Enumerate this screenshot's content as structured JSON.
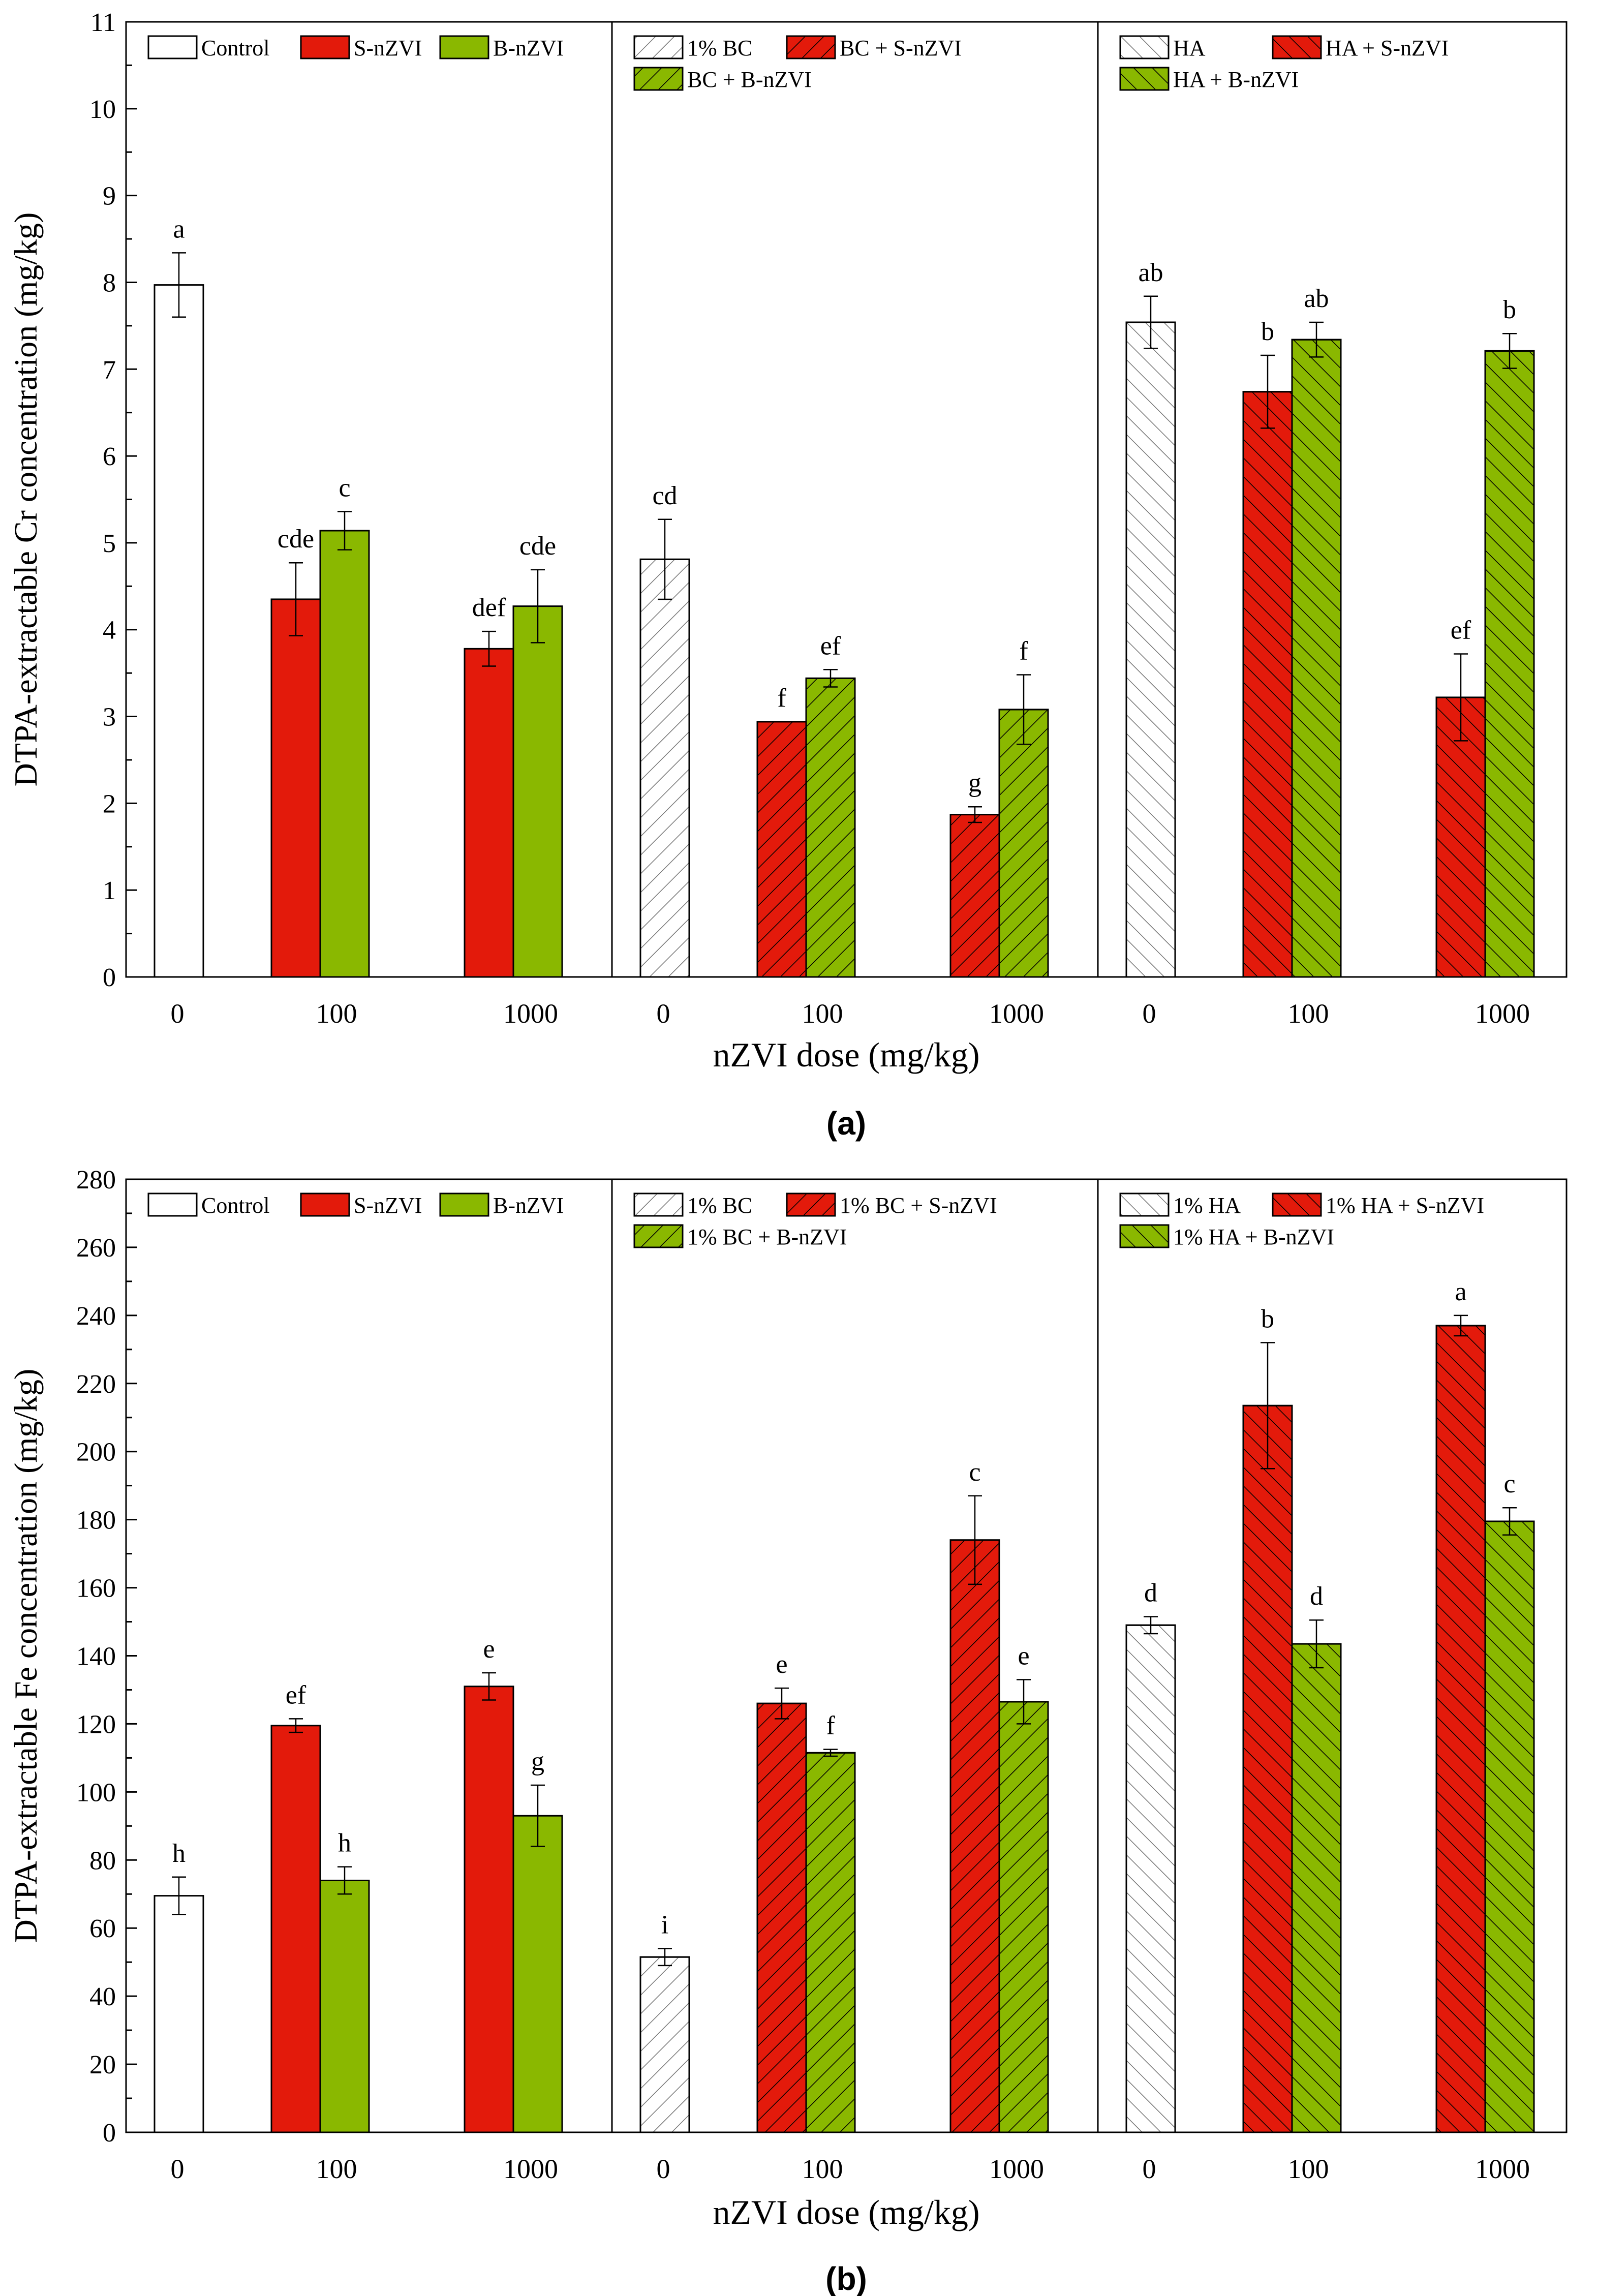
{
  "chart_data": [
    {
      "panel_label": "(a)",
      "type": "bar",
      "ylabel": "DTPA-extractable Cr concentration (mg/kg)",
      "xlabel": "nZVI dose (mg/kg)",
      "ylim": [
        0,
        11
      ],
      "yticks": [
        0,
        1,
        2,
        3,
        4,
        5,
        6,
        7,
        8,
        9,
        10,
        11
      ],
      "x_tick_labels": [
        "0",
        "100",
        "1000",
        "0",
        "100",
        "1000",
        "0",
        "100",
        "1000"
      ],
      "groups": [
        {
          "legend": [
            {
              "label": "Control",
              "color": "#ffffff",
              "hatch": "none"
            },
            {
              "label": "S-nZVI",
              "color": "#e31a0b",
              "hatch": "none"
            },
            {
              "label": "B-nZVI",
              "color": "#8ab800",
              "hatch": "none"
            }
          ],
          "doses": [
            {
              "dose": "0",
              "bars": [
                {
                  "series": 0,
                  "value": 7.97,
                  "err": 0.37,
                  "sig": "a"
                }
              ]
            },
            {
              "dose": "100",
              "bars": [
                {
                  "series": 1,
                  "value": 4.35,
                  "err": 0.42,
                  "sig": "cde"
                },
                {
                  "series": 2,
                  "value": 5.14,
                  "err": 0.22,
                  "sig": "c"
                }
              ]
            },
            {
              "dose": "1000",
              "bars": [
                {
                  "series": 1,
                  "value": 3.78,
                  "err": 0.2,
                  "sig": "def"
                },
                {
                  "series": 2,
                  "value": 4.27,
                  "err": 0.42,
                  "sig": "cde"
                }
              ]
            }
          ]
        },
        {
          "legend": [
            {
              "label": "1% BC",
              "color": "#ffffff",
              "hatch": "back"
            },
            {
              "label": "BC + S-nZVI",
              "color": "#e31a0b",
              "hatch": "back"
            },
            {
              "label": "BC + B-nZVI",
              "color": "#8ab800",
              "hatch": "back"
            }
          ],
          "doses": [
            {
              "dose": "0",
              "bars": [
                {
                  "series": 0,
                  "value": 4.81,
                  "err": 0.46,
                  "sig": "cd"
                }
              ]
            },
            {
              "dose": "100",
              "bars": [
                {
                  "series": 1,
                  "value": 2.94,
                  "err": 0,
                  "sig": "f"
                },
                {
                  "series": 2,
                  "value": 3.44,
                  "err": 0.1,
                  "sig": "ef"
                }
              ]
            },
            {
              "dose": "1000",
              "bars": [
                {
                  "series": 1,
                  "value": 1.87,
                  "err": 0.09,
                  "sig": "g"
                },
                {
                  "series": 2,
                  "value": 3.08,
                  "err": 0.4,
                  "sig": "f"
                }
              ]
            }
          ]
        },
        {
          "legend": [
            {
              "label": "HA",
              "color": "#ffffff",
              "hatch": "fwd"
            },
            {
              "label": "HA + S-nZVI",
              "color": "#e31a0b",
              "hatch": "fwd"
            },
            {
              "label": "HA + B-nZVI",
              "color": "#8ab800",
              "hatch": "fwd"
            }
          ],
          "doses": [
            {
              "dose": "0",
              "bars": [
                {
                  "series": 0,
                  "value": 7.54,
                  "err": 0.3,
                  "sig": "ab"
                }
              ]
            },
            {
              "dose": "100",
              "bars": [
                {
                  "series": 1,
                  "value": 6.74,
                  "err": 0.42,
                  "sig": "b"
                },
                {
                  "series": 2,
                  "value": 7.34,
                  "err": 0.2,
                  "sig": "ab"
                }
              ]
            },
            {
              "dose": "1000",
              "bars": [
                {
                  "series": 1,
                  "value": 3.22,
                  "err": 0.5,
                  "sig": "ef"
                },
                {
                  "series": 2,
                  "value": 7.21,
                  "err": 0.2,
                  "sig": "b"
                }
              ]
            }
          ]
        }
      ]
    },
    {
      "panel_label": "(b)",
      "type": "bar",
      "ylabel": "DTPA-extractable Fe concentration (mg/kg)",
      "xlabel": "nZVI dose (mg/kg)",
      "ylim": [
        0,
        280
      ],
      "yticks": [
        0,
        20,
        40,
        60,
        80,
        100,
        120,
        140,
        160,
        180,
        200,
        220,
        240,
        260,
        280
      ],
      "x_tick_labels": [
        "0",
        "100",
        "1000",
        "0",
        "100",
        "1000",
        "0",
        "100",
        "1000"
      ],
      "groups": [
        {
          "legend": [
            {
              "label": "Control",
              "color": "#ffffff",
              "hatch": "none"
            },
            {
              "label": "S-nZVI",
              "color": "#e31a0b",
              "hatch": "none"
            },
            {
              "label": "B-nZVI",
              "color": "#8ab800",
              "hatch": "none"
            }
          ],
          "doses": [
            {
              "dose": "0",
              "bars": [
                {
                  "series": 0,
                  "value": 69.5,
                  "err": 5.5,
                  "sig": "h"
                }
              ]
            },
            {
              "dose": "100",
              "bars": [
                {
                  "series": 1,
                  "value": 119.5,
                  "err": 2,
                  "sig": "ef"
                },
                {
                  "series": 2,
                  "value": 74,
                  "err": 4,
                  "sig": "h"
                }
              ]
            },
            {
              "dose": "1000",
              "bars": [
                {
                  "series": 1,
                  "value": 131,
                  "err": 4,
                  "sig": "e"
                },
                {
                  "series": 2,
                  "value": 93,
                  "err": 9,
                  "sig": "g"
                }
              ]
            }
          ]
        },
        {
          "legend": [
            {
              "label": "1% BC",
              "color": "#ffffff",
              "hatch": "back"
            },
            {
              "label": "1% BC + S-nZVI",
              "color": "#e31a0b",
              "hatch": "back"
            },
            {
              "label": "1% BC + B-nZVI",
              "color": "#8ab800",
              "hatch": "back"
            }
          ],
          "doses": [
            {
              "dose": "0",
              "bars": [
                {
                  "series": 0,
                  "value": 51.5,
                  "err": 2.5,
                  "sig": "i"
                }
              ]
            },
            {
              "dose": "100",
              "bars": [
                {
                  "series": 1,
                  "value": 126,
                  "err": 4.5,
                  "sig": "e"
                },
                {
                  "series": 2,
                  "value": 111.5,
                  "err": 1,
                  "sig": "f"
                }
              ]
            },
            {
              "dose": "1000",
              "bars": [
                {
                  "series": 1,
                  "value": 174,
                  "err": 13,
                  "sig": "c"
                },
                {
                  "series": 2,
                  "value": 126.5,
                  "err": 6.5,
                  "sig": "e"
                }
              ]
            }
          ]
        },
        {
          "legend": [
            {
              "label": "1% HA",
              "color": "#ffffff",
              "hatch": "fwd"
            },
            {
              "label": "1% HA + S-nZVI",
              "color": "#e31a0b",
              "hatch": "fwd"
            },
            {
              "label": "1% HA + B-nZVI",
              "color": "#8ab800",
              "hatch": "fwd"
            }
          ],
          "doses": [
            {
              "dose": "0",
              "bars": [
                {
                  "series": 0,
                  "value": 149,
                  "err": 2.5,
                  "sig": "d"
                }
              ]
            },
            {
              "dose": "100",
              "bars": [
                {
                  "series": 1,
                  "value": 213.5,
                  "err": 18.5,
                  "sig": "b"
                },
                {
                  "series": 2,
                  "value": 143.5,
                  "err": 7,
                  "sig": "d"
                }
              ]
            },
            {
              "dose": "1000",
              "bars": [
                {
                  "series": 1,
                  "value": 237,
                  "err": 3,
                  "sig": "a"
                },
                {
                  "series": 2,
                  "value": 179.5,
                  "err": 4,
                  "sig": "c"
                }
              ]
            }
          ]
        }
      ]
    }
  ]
}
